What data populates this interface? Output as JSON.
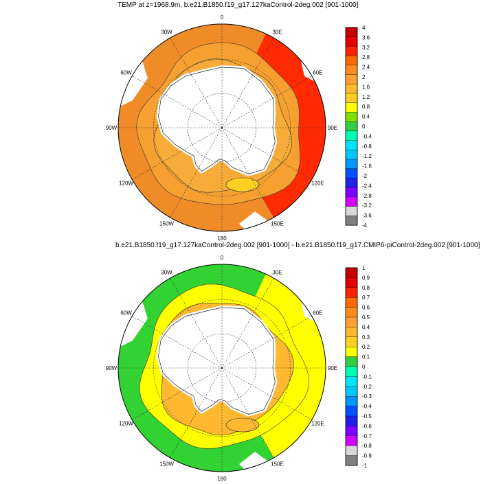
{
  "panels": [
    {
      "title": "TEMP at z=1968.9m, b.e21.B1850.f19_g17.127kaControl-2deg.002 [901-1000]",
      "lon_labels": [
        "0",
        "30E",
        "60E",
        "90E",
        "120E",
        "150E",
        "180",
        "150W",
        "120W",
        "90W",
        "60W",
        "30W"
      ],
      "colorbar": {
        "labels": [
          "4",
          "3.6",
          "3.2",
          "2.8",
          "2.4",
          "2",
          "1.6",
          "1.2",
          "0.8",
          "0.4",
          "0",
          "-0.4",
          "-0.8",
          "-1.2",
          "-1.6",
          "-2",
          "-2.4",
          "-2.8",
          "-3.2",
          "-3.6",
          "-4"
        ],
        "colors": [
          "#c80000",
          "#e60000",
          "#ff2000",
          "#ff6a00",
          "#ff8c1a",
          "#ffa030",
          "#ffb830",
          "#ffd020",
          "#ffff00",
          "#7fe000",
          "#30d040",
          "#00ffb4",
          "#00e6ff",
          "#00c8ff",
          "#0096ff",
          "#0050ff",
          "#2020e6",
          "#8000ff",
          "#d200ff",
          "#d9d9d9",
          "#808080"
        ]
      },
      "field": {
        "outer": "#f08c28",
        "ring_mid": "#f5a030",
        "ring_inner": "#f7ac3a",
        "warm_sector": "#ff2a00",
        "yellow_patch": "#ffd020"
      }
    },
    {
      "title": "b.e21.B1850.f19_g17.127kaControl-2deg.002 [901-1000] - b.e21.B1850.f19_g17.CMIP6-piControl-2deg.002 [901-1000]",
      "lon_labels": [
        "0",
        "30E",
        "60E",
        "90E",
        "120E",
        "150E",
        "180",
        "150W",
        "120W",
        "90W",
        "60W",
        "30W"
      ],
      "colorbar": {
        "labels": [
          "1",
          "0.9",
          "0.8",
          "0.7",
          "0.6",
          "0.5",
          "0.4",
          "0.3",
          "0.2",
          "0.1",
          "0",
          "-0.1",
          "-0.2",
          "-0.3",
          "-0.4",
          "-0.5",
          "-0.6",
          "-0.7",
          "-0.8",
          "-0.9",
          "-1"
        ],
        "colors": [
          "#c80000",
          "#e60000",
          "#ff2000",
          "#ff6a00",
          "#ff8c1a",
          "#ffa030",
          "#ffb830",
          "#ffd020",
          "#ffff00",
          "#30d040",
          "#00ffb4",
          "#00e6ff",
          "#00c8ff",
          "#0096ff",
          "#0050ff",
          "#2020e6",
          "#8000ff",
          "#d200ff",
          "#d9d9d9",
          "#808080"
        ]
      },
      "field": {
        "outer": "#32d232",
        "ring_mid": "#ffff00",
        "ring_inner": "#ffb830",
        "warm_sector": "#ffff00",
        "yellow_patch": "#ffb830"
      }
    }
  ]
}
